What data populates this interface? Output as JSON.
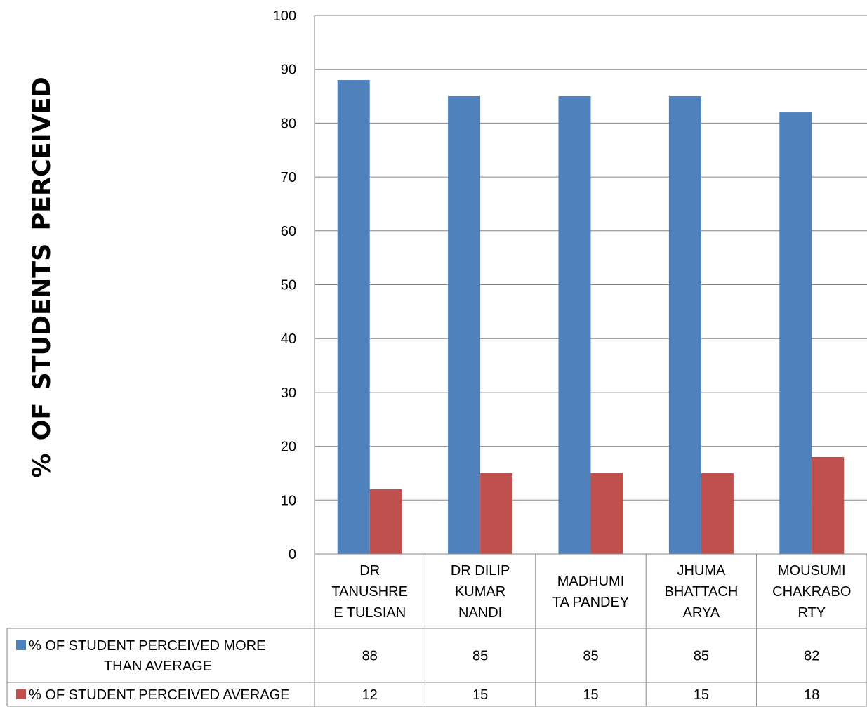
{
  "chart_data": {
    "type": "bar",
    "title": "",
    "ylabel": "% OF STUDENTS PERCEIVED",
    "xlabel": "",
    "ylim": [
      0,
      100
    ],
    "ytick_step": 10,
    "grid": true,
    "legend": "data-table",
    "categories": [
      [
        "DR",
        "TANUSHRE",
        "E TULSIAN"
      ],
      [
        "DR DILIP",
        "KUMAR",
        "NANDI"
      ],
      [
        "MADHUMI",
        "TA PANDEY"
      ],
      [
        "JHUMA",
        "BHATTACH",
        "ARYA"
      ],
      [
        "MOUSUMI",
        "CHAKRABO",
        "RTY"
      ]
    ],
    "series": [
      {
        "name": "% OF STUDENT PERCEIVED MORE THAN AVERAGE",
        "name_lines": [
          "% OF STUDENT PERCEIVED MORE",
          "THAN AVERAGE"
        ],
        "color": "#4F81BD",
        "values": [
          88,
          85,
          85,
          85,
          82
        ]
      },
      {
        "name": "% OF STUDENT PERCEIVED AVERAGE",
        "name_lines": [
          "% OF STUDENT PERCEIVED AVERAGE"
        ],
        "color": "#C0504D",
        "values": [
          12,
          15,
          15,
          15,
          18
        ]
      }
    ]
  }
}
